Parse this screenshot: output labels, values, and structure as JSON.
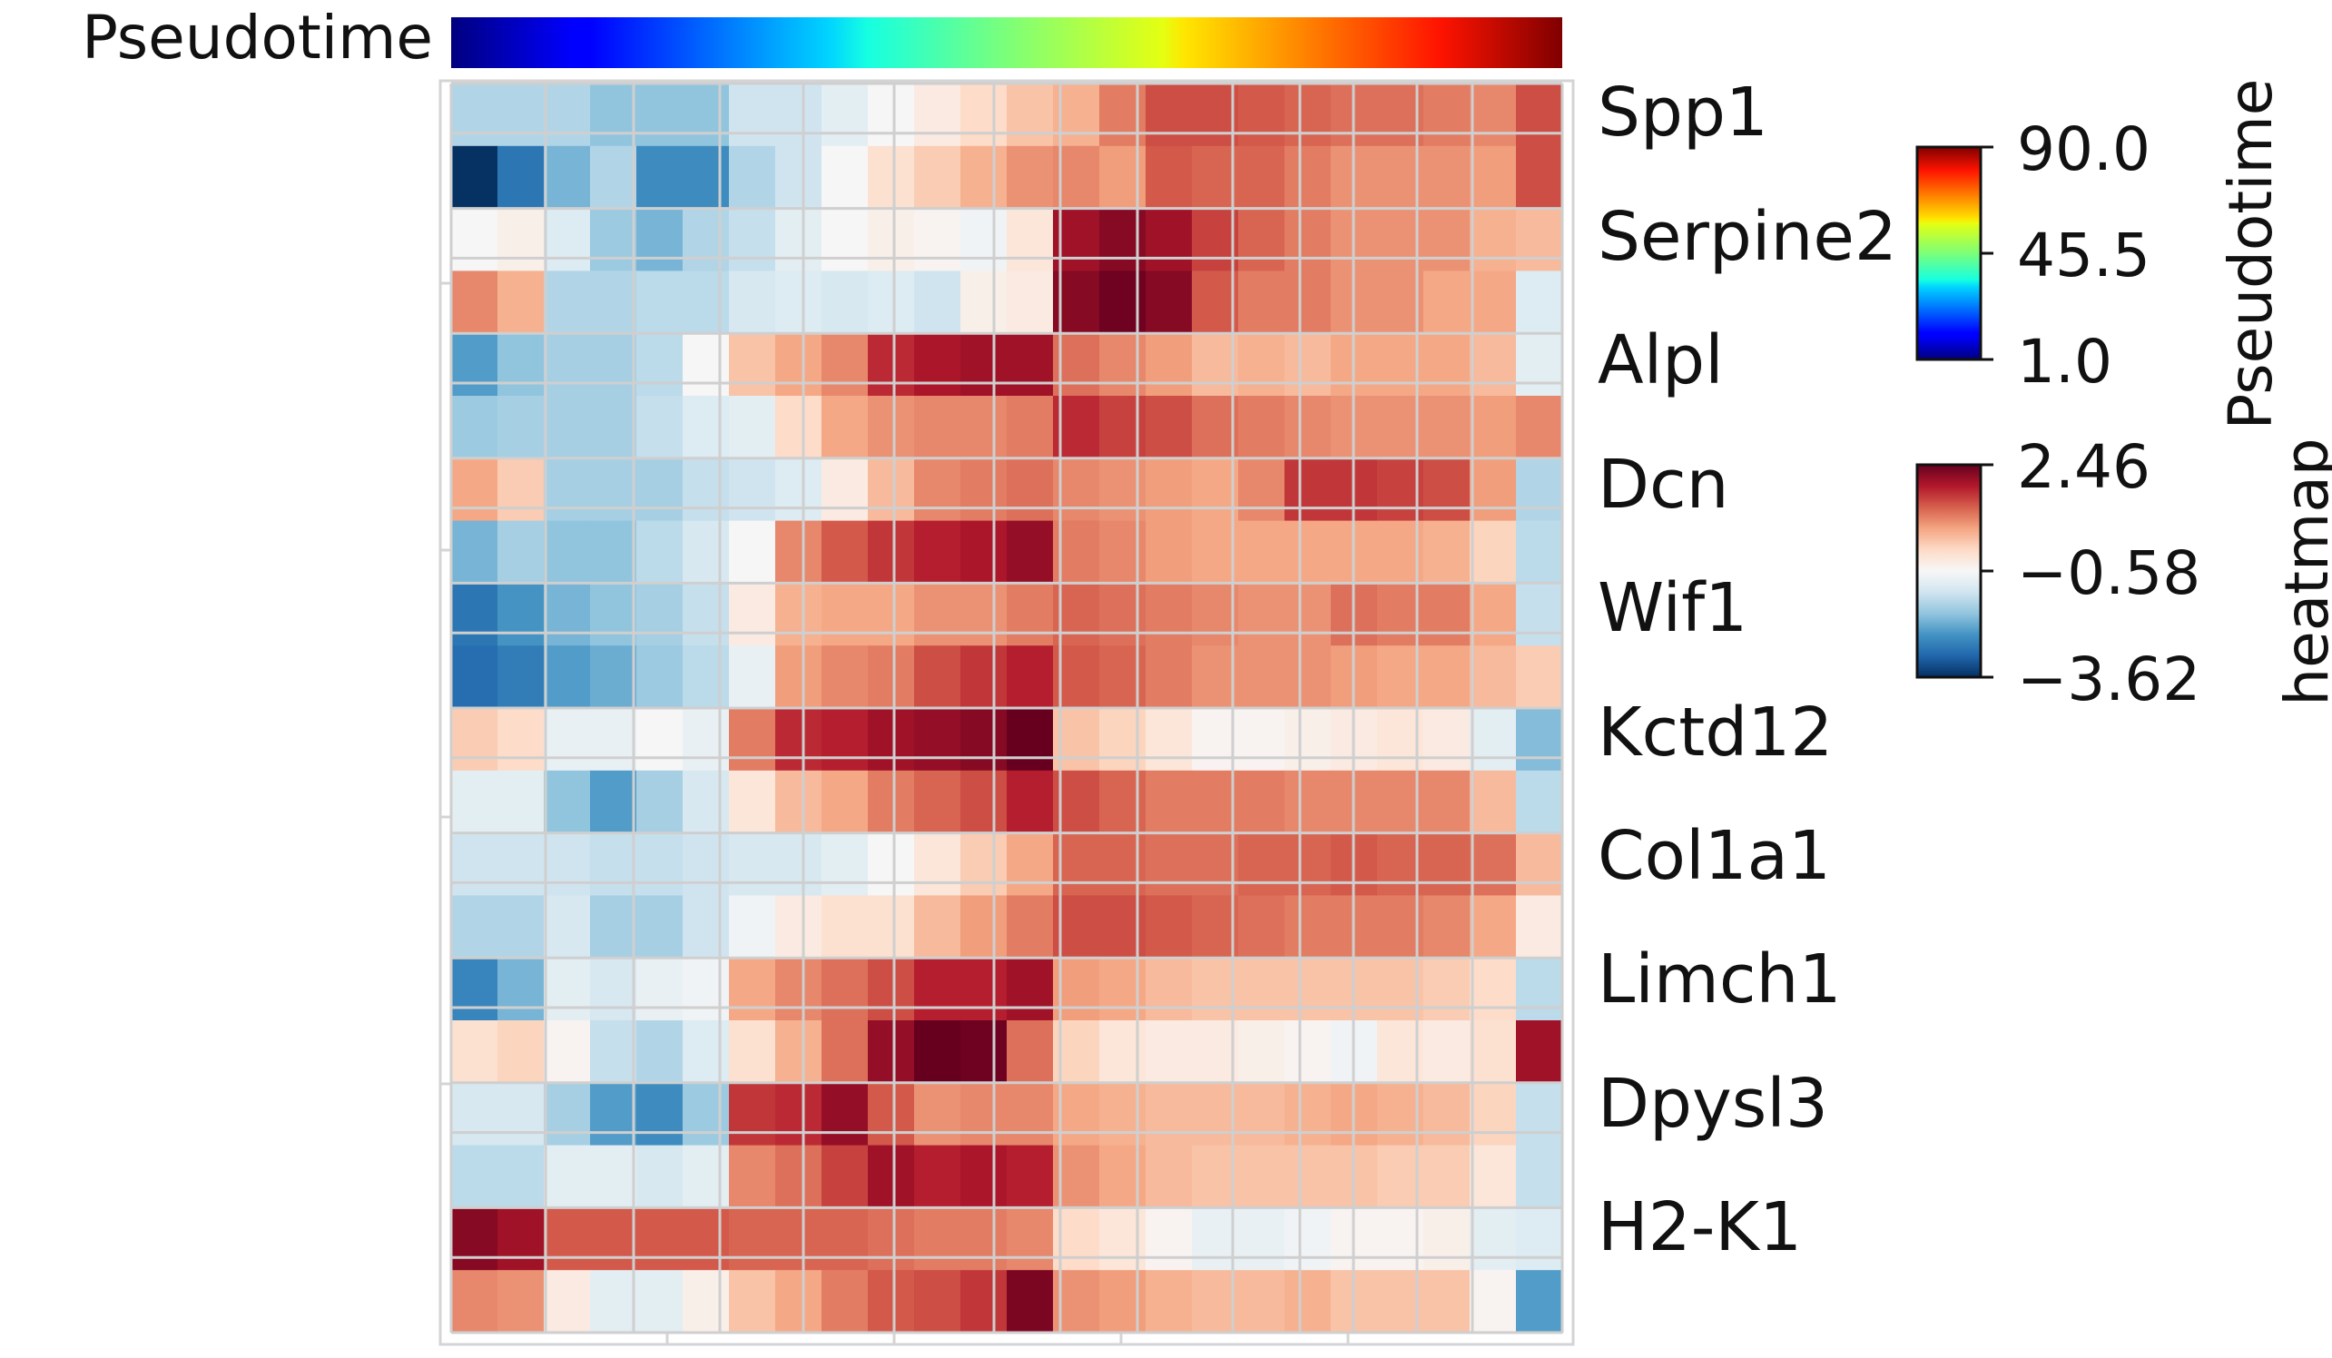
{
  "chart_data": {
    "type": "heatmap",
    "title": "",
    "xlabel": "",
    "ylabel": "",
    "pseudotime_bar_label": "Pseudotime",
    "rows": [
      "Spp1",
      "Serpine2",
      "Alpl",
      "Dcn",
      "Wif1",
      "Kctd12",
      "Col1a1",
      "Limch1",
      "Dpysl3",
      "H2-K1"
    ],
    "n_bins": 24,
    "grid": true,
    "colormap": "RdBu_r",
    "pseudotime_colormap": "jet",
    "colorbars": [
      {
        "title": "Pseudotime",
        "ticks": [
          "90.0",
          "45.5",
          "1.0"
        ],
        "min": 1.0,
        "max": 90.0
      },
      {
        "title": "heatmap",
        "ticks": [
          "2.46",
          "−0.58",
          "−3.62"
        ],
        "min": -3.62,
        "max": 2.46
      }
    ],
    "vmin": -3.62,
    "vmax": 2.46,
    "values": [
      [
        -1.5,
        -1.5,
        -1.5,
        -1.8,
        -1.8,
        -1.8,
        -1.2,
        -1.2,
        -0.9,
        -0.6,
        -0.3,
        0.0,
        0.3,
        0.5,
        1.0,
        1.4,
        1.4,
        1.3,
        1.2,
        1.1,
        1.1,
        1.0,
        0.9,
        1.4
      ],
      [
        -3.6,
        -2.8,
        -2.0,
        -1.5,
        -2.5,
        -2.5,
        -1.5,
        -1.2,
        -0.6,
        -0.1,
        0.2,
        0.5,
        0.8,
        0.9,
        0.7,
        1.3,
        1.2,
        1.2,
        1.0,
        0.8,
        0.8,
        0.8,
        0.7,
        1.4
      ],
      [
        -0.6,
        -0.4,
        -1.0,
        -1.7,
        -2.0,
        -1.5,
        -1.3,
        -0.9,
        -0.6,
        -0.4,
        -0.5,
        -0.7,
        -0.2,
        2.0,
        2.2,
        2.0,
        1.5,
        1.2,
        1.0,
        0.8,
        0.8,
        0.8,
        0.5,
        0.4
      ],
      [
        0.9,
        0.5,
        -1.5,
        -1.5,
        -1.4,
        -1.4,
        -1.1,
        -1.0,
        -1.1,
        -1.0,
        -1.2,
        -0.4,
        -0.3,
        2.2,
        2.4,
        2.2,
        1.3,
        1.0,
        1.0,
        0.8,
        0.8,
        0.6,
        0.6,
        -1.0
      ],
      [
        -2.3,
        -1.8,
        -1.6,
        -1.6,
        -1.4,
        -0.6,
        0.3,
        0.6,
        0.9,
        1.7,
        1.9,
        2.0,
        2.0,
        1.1,
        0.9,
        0.7,
        0.4,
        0.5,
        0.4,
        0.6,
        0.6,
        0.6,
        0.4,
        -0.9
      ],
      [
        -1.7,
        -1.6,
        -1.6,
        -1.6,
        -1.3,
        -1.0,
        -0.9,
        0.0,
        0.6,
        0.8,
        0.9,
        0.9,
        1.0,
        1.7,
        1.5,
        1.4,
        1.1,
        1.0,
        0.9,
        0.8,
        0.8,
        0.8,
        0.7,
        0.9
      ],
      [
        0.6,
        0.2,
        -1.6,
        -1.6,
        -1.6,
        -1.3,
        -1.2,
        -1.0,
        -0.3,
        0.4,
        0.9,
        1.0,
        1.1,
        0.9,
        0.8,
        0.7,
        0.6,
        0.9,
        1.6,
        1.6,
        1.5,
        1.4,
        0.7,
        -1.5
      ],
      [
        -2.0,
        -1.6,
        -1.8,
        -1.8,
        -1.4,
        -1.1,
        -0.6,
        0.9,
        1.3,
        1.6,
        1.8,
        1.9,
        2.1,
        1.0,
        0.9,
        0.7,
        0.6,
        0.6,
        0.6,
        0.6,
        0.6,
        0.5,
        0.1,
        -1.4
      ],
      [
        -2.8,
        -2.4,
        -2.0,
        -1.8,
        -1.6,
        -1.3,
        -0.3,
        0.5,
        0.6,
        0.6,
        0.8,
        0.8,
        1.0,
        1.2,
        1.1,
        1.0,
        0.9,
        0.8,
        0.8,
        1.1,
        1.0,
        1.0,
        0.6,
        -1.3
      ],
      [
        -2.9,
        -2.7,
        -2.3,
        -2.1,
        -1.7,
        -1.4,
        -0.8,
        0.7,
        0.9,
        1.0,
        1.4,
        1.6,
        1.8,
        1.3,
        1.2,
        1.0,
        0.8,
        0.8,
        0.8,
        0.7,
        0.6,
        0.6,
        0.4,
        0.2
      ],
      [
        0.2,
        0.0,
        -0.8,
        -0.8,
        -0.6,
        -0.8,
        1.0,
        1.7,
        1.8,
        2.0,
        2.1,
        2.2,
        2.5,
        0.3,
        0.1,
        -0.2,
        -0.5,
        -0.5,
        -0.4,
        -0.3,
        -0.2,
        -0.3,
        -0.9,
        -1.9
      ],
      [
        -0.9,
        -0.9,
        -1.8,
        -2.3,
        -1.6,
        -1.1,
        -0.2,
        0.4,
        0.6,
        1.0,
        1.2,
        1.4,
        1.8,
        1.4,
        1.2,
        1.0,
        1.0,
        1.0,
        0.9,
        0.9,
        0.9,
        0.9,
        0.4,
        -1.4
      ],
      [
        -1.2,
        -1.2,
        -1.2,
        -1.3,
        -1.3,
        -1.2,
        -1.1,
        -1.1,
        -0.9,
        -0.6,
        -0.2,
        0.2,
        0.6,
        1.2,
        1.2,
        1.1,
        1.1,
        1.2,
        1.2,
        1.3,
        1.2,
        1.2,
        1.1,
        0.4
      ],
      [
        -1.5,
        -1.5,
        -1.1,
        -1.6,
        -1.6,
        -1.2,
        -0.7,
        -0.3,
        -0.1,
        -0.1,
        0.4,
        0.7,
        1.0,
        1.4,
        1.4,
        1.3,
        1.2,
        1.1,
        1.0,
        1.0,
        1.0,
        0.9,
        0.6,
        -0.3
      ],
      [
        -2.6,
        -2.0,
        -0.9,
        -1.1,
        -0.8,
        -0.7,
        0.6,
        0.9,
        1.1,
        1.4,
        1.8,
        1.8,
        2.0,
        0.7,
        0.6,
        0.4,
        0.3,
        0.3,
        0.3,
        0.3,
        0.3,
        0.2,
        0.0,
        -1.4
      ],
      [
        -0.1,
        0.1,
        -0.5,
        -1.3,
        -1.5,
        -1.0,
        -0.1,
        0.5,
        1.1,
        2.1,
        2.5,
        2.4,
        1.1,
        0.1,
        -0.2,
        -0.3,
        -0.3,
        -0.4,
        -0.5,
        -0.7,
        -0.2,
        -0.3,
        -0.1,
        2.0
      ],
      [
        -1.1,
        -1.1,
        -1.6,
        -2.3,
        -2.5,
        -1.7,
        1.6,
        1.7,
        2.1,
        1.3,
        0.8,
        0.9,
        0.9,
        0.6,
        0.5,
        0.4,
        0.4,
        0.4,
        0.5,
        0.6,
        0.5,
        0.4,
        0.1,
        -1.3
      ],
      [
        -1.4,
        -1.4,
        -0.9,
        -0.9,
        -1.1,
        -0.9,
        0.9,
        1.1,
        1.5,
        2.0,
        1.8,
        1.9,
        1.8,
        0.8,
        0.6,
        0.4,
        0.3,
        0.3,
        0.3,
        0.3,
        0.2,
        0.2,
        -0.2,
        -1.3
      ],
      [
        2.2,
        2.0,
        1.3,
        1.3,
        1.3,
        1.3,
        1.2,
        1.2,
        1.2,
        1.1,
        1.0,
        1.0,
        0.9,
        0.0,
        -0.2,
        -0.5,
        -0.8,
        -0.8,
        -0.7,
        -0.5,
        -0.5,
        -0.4,
        -0.9,
        -1.0
      ],
      [
        0.9,
        0.8,
        -0.3,
        -0.9,
        -0.9,
        -0.4,
        0.3,
        0.6,
        1.0,
        1.3,
        1.4,
        1.6,
        2.3,
        0.8,
        0.7,
        0.5,
        0.4,
        0.4,
        0.5,
        0.3,
        0.3,
        0.3,
        -0.5,
        -2.3
      ]
    ],
    "pseudotime_bar": [
      1.0,
      90.0
    ]
  }
}
